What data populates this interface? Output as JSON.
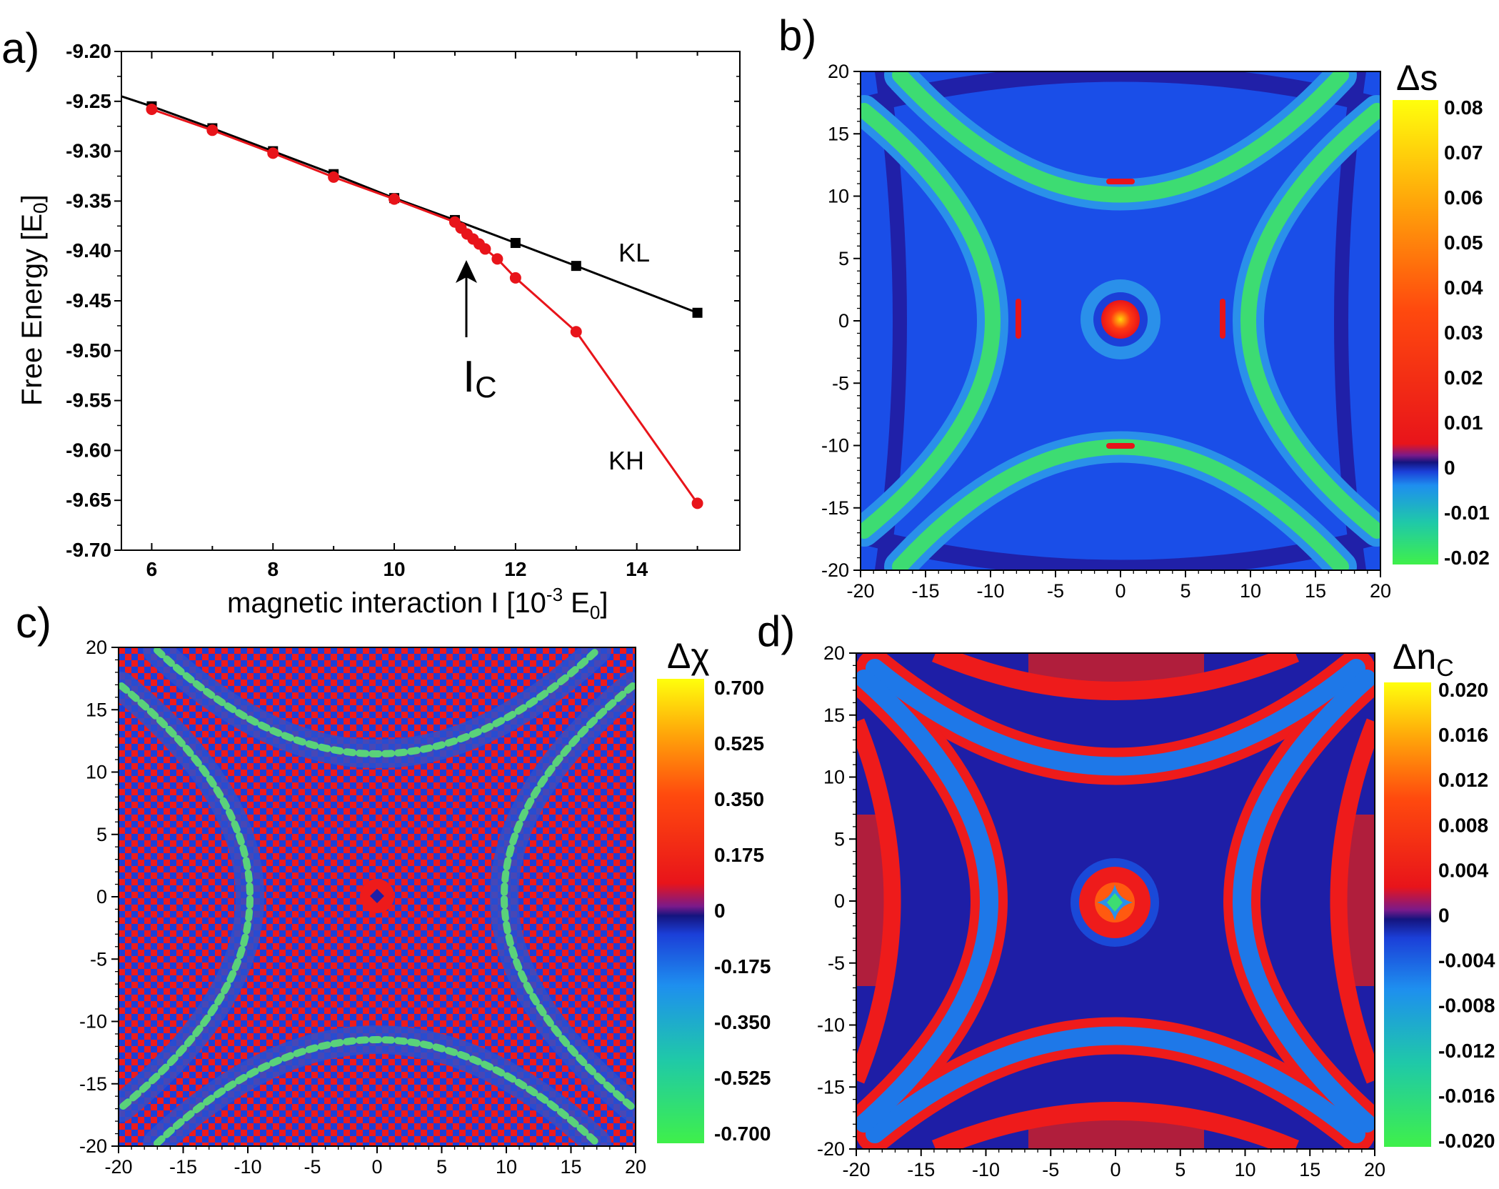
{
  "chart_data": [
    {
      "panel": "a)",
      "type": "line",
      "xlabel": "magnetic interaction I [10⁻³ E₀]",
      "ylabel": "Free Energy [E₀]",
      "xlim": [
        5.5,
        15.7
      ],
      "ylim": [
        -9.7,
        -9.2
      ],
      "xticks": [
        "6",
        "8",
        "10",
        "12",
        "14"
      ],
      "yticks": [
        "-9.20",
        "-9.25",
        "-9.30",
        "-9.35",
        "-9.40",
        "-9.45",
        "-9.50",
        "-9.55",
        "-9.60",
        "-9.65",
        "-9.70"
      ],
      "series": [
        {
          "name": "KL",
          "color": "#000000",
          "marker": "square",
          "x": [
            6,
            7,
            8,
            9,
            10,
            11,
            12,
            13,
            15
          ],
          "y": [
            -9.255,
            -9.277,
            -9.3,
            -9.323,
            -9.347,
            -9.369,
            -9.392,
            -9.415,
            -9.462
          ]
        },
        {
          "name": "KH",
          "color": "#e8141a",
          "marker": "circle",
          "x": [
            6,
            7,
            8,
            9,
            10,
            11,
            11.1,
            11.2,
            11.3,
            11.4,
            11.5,
            11.7,
            12,
            13,
            15
          ],
          "y": [
            -9.258,
            -9.279,
            -9.302,
            -9.326,
            -9.348,
            -9.371,
            -9.377,
            -9.383,
            -9.388,
            -9.393,
            -9.398,
            -9.408,
            -9.427,
            -9.481,
            -9.653
          ]
        }
      ],
      "annotation": {
        "text": "I",
        "sub": "C",
        "x": 11
      }
    },
    {
      "panel": "b)",
      "type": "heatmap",
      "title": "Δs",
      "xlim": [
        -20,
        20
      ],
      "ylim": [
        -20,
        20
      ],
      "xticks": [
        "-20",
        "-15",
        "-10",
        "-5",
        "0",
        "5",
        "10",
        "15",
        "20"
      ],
      "yticks": [
        "20",
        "15",
        "10",
        "5",
        "0",
        "-5",
        "-10",
        "-15",
        "-20"
      ],
      "colorbar_ticks": [
        "0.08",
        "0.07",
        "0.06",
        "0.05",
        "0.04",
        "0.03",
        "0.02",
        "0.01",
        "0",
        "-0.01",
        "-0.02"
      ],
      "vmin": -0.02,
      "vmax": 0.08,
      "zero": 0
    },
    {
      "panel": "c)",
      "type": "heatmap",
      "title": "Δχ",
      "xlim": [
        -20,
        20
      ],
      "ylim": [
        -20,
        20
      ],
      "xticks": [
        "-20",
        "-15",
        "-10",
        "-5",
        "0",
        "5",
        "10",
        "15",
        "20"
      ],
      "yticks": [
        "20",
        "15",
        "10",
        "5",
        "0",
        "-5",
        "-10",
        "-15",
        "-20"
      ],
      "colorbar_ticks": [
        "0.700",
        "0.525",
        "0.350",
        "0.175",
        "0",
        "-0.175",
        "-0.350",
        "-0.525",
        "-0.700"
      ],
      "vmin": -0.7,
      "vmax": 0.7,
      "zero": 0
    },
    {
      "panel": "d)",
      "type": "heatmap",
      "title": "Δn",
      "title_sub": "C",
      "xlim": [
        -20,
        20
      ],
      "ylim": [
        -20,
        20
      ],
      "xticks": [
        "-20",
        "-15",
        "-10",
        "-5",
        "0",
        "5",
        "10",
        "15",
        "20"
      ],
      "yticks": [
        "20",
        "15",
        "10",
        "5",
        "0",
        "-5",
        "-10",
        "-15",
        "-20"
      ],
      "colorbar_ticks": [
        "0.020",
        "0.016",
        "0.012",
        "0.008",
        "0.004",
        "0",
        "-0.004",
        "-0.008",
        "-0.012",
        "-0.016",
        "-0.020"
      ],
      "vmin": -0.02,
      "vmax": 0.02,
      "zero": 0
    }
  ],
  "colors": {
    "kl": "#000000",
    "kh": "#e8141a",
    "map_bg": "#1a49e6",
    "map_dark": "#1e1ea6",
    "map_red": "#ee1b1b",
    "map_green": "#3de05a",
    "map_cyan": "#2aa9e8",
    "map_maroon": "#b01e3c"
  }
}
